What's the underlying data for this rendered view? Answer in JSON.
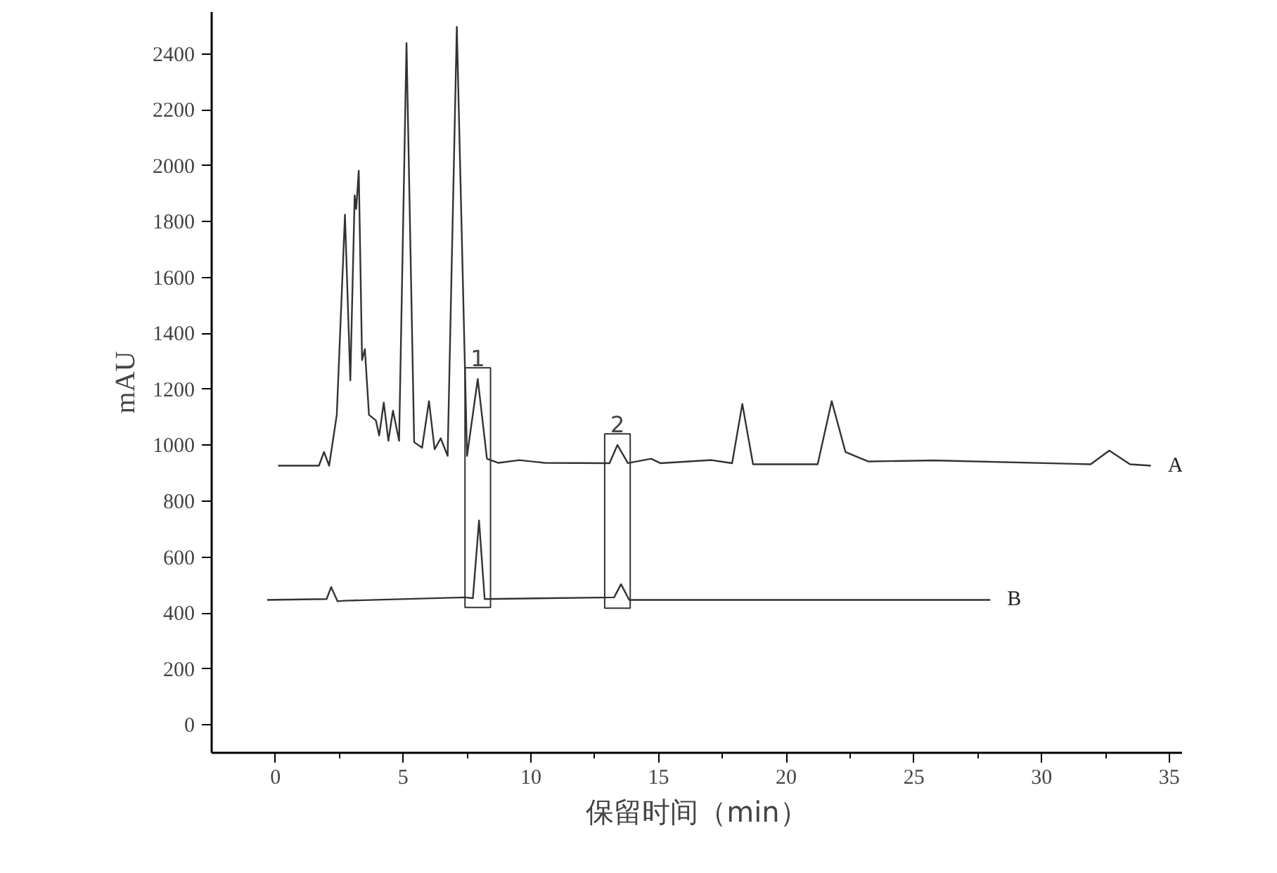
{
  "chart_data": {
    "type": "line",
    "xlabel": "保留时间（min）",
    "ylabel": "mAU",
    "xlim": [
      -2.5,
      35.5
    ],
    "ylim": [
      -100,
      2550
    ],
    "xticks": [
      0,
      5,
      10,
      15,
      20,
      25,
      30,
      35
    ],
    "yticks": [
      0,
      200,
      400,
      600,
      800,
      1000,
      1200,
      1400,
      1600,
      1800,
      2000,
      2200,
      2400
    ],
    "grid": false,
    "legend": false,
    "marker": "none",
    "line_style": "solid",
    "annotations": [
      {
        "text": "1",
        "x": 7.92,
        "y": 1237
      },
      {
        "text": "2",
        "x": 13.39,
        "y": 1001
      }
    ],
    "series": [
      {
        "name": "A",
        "color": "#333333",
        "x": [
          0.1,
          1.7,
          1.9,
          2.1,
          2.4,
          2.72,
          2.93,
          3.1,
          3.16,
          3.26,
          3.39,
          3.5,
          3.66,
          3.93,
          4.06,
          4.24,
          4.42,
          4.6,
          4.84,
          5.13,
          5.43,
          5.74,
          6.01,
          6.23,
          6.47,
          6.74,
          7.1,
          7.5,
          7.92,
          8.28,
          8.73,
          9.55,
          10.54,
          13.08,
          13.39,
          13.8,
          14.71,
          15.07,
          17.07,
          17.88,
          18.28,
          18.7,
          21.23,
          21.78,
          22.32,
          23.22,
          25.76,
          31.92,
          32.65,
          33.46,
          34.28
        ],
        "values": [
          927,
          927,
          976,
          927,
          1109,
          1825,
          1232,
          1894,
          1845,
          1982,
          1305,
          1344,
          1109,
          1089,
          1035,
          1153,
          1016,
          1124,
          1016,
          2439,
          1011,
          991,
          1158,
          986,
          1025,
          962,
          2497,
          962,
          1237,
          952,
          937,
          947,
          937,
          936,
          1001,
          936,
          952,
          936,
          947,
          936,
          1148,
          932,
          932,
          1158,
          976,
          942,
          946,
          932,
          981,
          932,
          927
        ]
      },
      {
        "name": "B",
        "color": "#333333",
        "x": [
          -0.33,
          2.0,
          2.18,
          2.43,
          2.7,
          7.41,
          7.73,
          7.97,
          8.19,
          13.26,
          13.53,
          13.85,
          27.99
        ],
        "values": [
          447,
          450,
          493,
          442,
          444,
          456,
          453,
          731,
          450,
          456,
          503,
          447,
          447
        ]
      }
    ]
  }
}
